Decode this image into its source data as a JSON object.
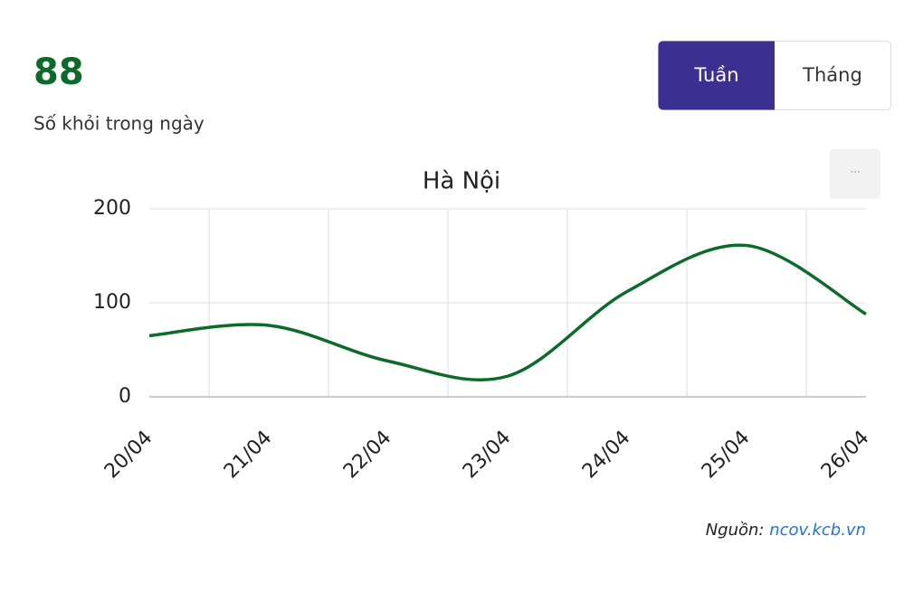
{
  "header": {
    "value": "88",
    "subtitle": "Số khỏi trong ngày"
  },
  "tabs": [
    "Tuần",
    "Tháng"
  ],
  "menu_button": "···",
  "chart_data": {
    "type": "line",
    "title": "Hà Nội",
    "categories": [
      "20/04",
      "21/04",
      "22/04",
      "23/04",
      "24/04",
      "25/04",
      "26/04"
    ],
    "series": [
      {
        "name": "Số khỏi",
        "color": "#0b6b2a",
        "values": [
          65,
          76,
          38,
          22,
          112,
          161,
          88
        ]
      }
    ],
    "ylim": [
      0,
      200
    ],
    "yticks": [
      0,
      100,
      200
    ],
    "grid": true
  },
  "source": {
    "label": "Nguồn:",
    "link": "ncov.kcb.vn"
  }
}
